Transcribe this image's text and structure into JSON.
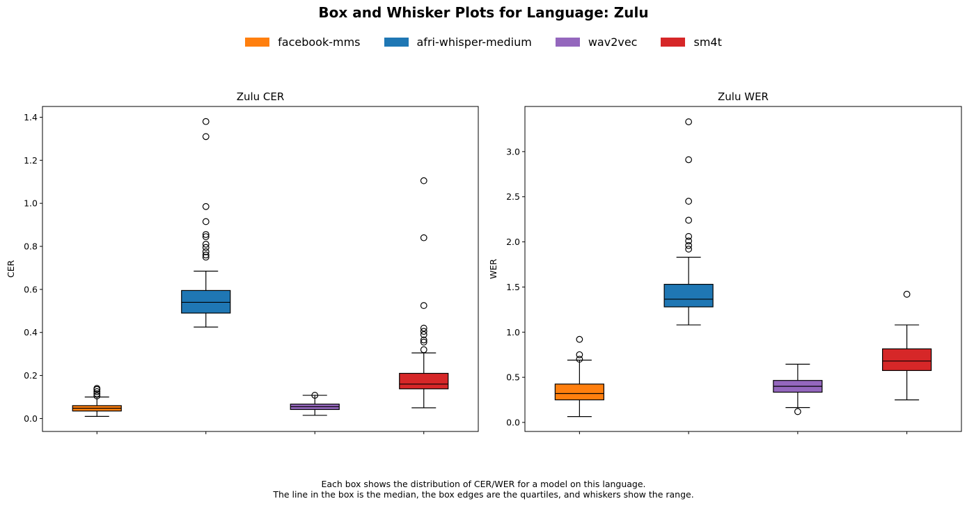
{
  "title": "Box and Whisker Plots for Language: Zulu",
  "legend": [
    {
      "label": "facebook-mms",
      "color": "#ff7f0e"
    },
    {
      "label": "afri-whisper-medium",
      "color": "#1f77b4"
    },
    {
      "label": "wav2vec",
      "color": "#9467bd"
    },
    {
      "label": "sm4t",
      "color": "#d62728"
    }
  ],
  "footnote": {
    "line1": "Each box shows the distribution of CER/WER for a model on this language.",
    "line2": "The line in the box is the median, the box edges are the quartiles, and whiskers show the range."
  },
  "chart_data": [
    {
      "type": "box",
      "title": "Zulu CER",
      "xlabel": "",
      "ylabel": "CER",
      "ylim": [
        -0.06,
        1.45
      ],
      "yticks": [
        "0.0",
        "0.2",
        "0.4",
        "0.6",
        "0.8",
        "1.0",
        "1.2",
        "1.4"
      ],
      "ytick_values": [
        0.0,
        0.2,
        0.4,
        0.6,
        0.8,
        1.0,
        1.2,
        1.4
      ],
      "boxes": [
        {
          "model": "facebook-mms",
          "color": "#ff7f0e",
          "whisker_low": 0.01,
          "q1": 0.035,
          "median": 0.048,
          "q3": 0.06,
          "whisker_high": 0.1,
          "outliers": [
            0.105,
            0.115,
            0.125,
            0.135,
            0.14
          ]
        },
        {
          "model": "afri-whisper-medium",
          "color": "#1f77b4",
          "whisker_low": 0.425,
          "q1": 0.49,
          "median": 0.54,
          "q3": 0.595,
          "whisker_high": 0.685,
          "outliers": [
            0.75,
            0.76,
            0.775,
            0.795,
            0.81,
            0.845,
            0.855,
            0.915,
            0.985,
            1.31,
            1.38
          ]
        },
        {
          "model": "wav2vec",
          "color": "#9467bd",
          "whisker_low": 0.015,
          "q1": 0.042,
          "median": 0.055,
          "q3": 0.067,
          "whisker_high": 0.108,
          "outliers": [
            0.108
          ]
        },
        {
          "model": "sm4t",
          "color": "#d62728",
          "whisker_low": 0.05,
          "q1": 0.138,
          "median": 0.16,
          "q3": 0.21,
          "whisker_high": 0.305,
          "outliers": [
            0.32,
            0.355,
            0.365,
            0.39,
            0.405,
            0.42,
            0.525,
            0.84,
            1.105
          ]
        }
      ]
    },
    {
      "type": "box",
      "title": "Zulu WER",
      "xlabel": "",
      "ylabel": "WER",
      "ylim": [
        -0.1,
        3.5
      ],
      "yticks": [
        "0.0",
        "0.5",
        "1.0",
        "1.5",
        "2.0",
        "2.5",
        "3.0"
      ],
      "ytick_values": [
        0.0,
        0.5,
        1.0,
        1.5,
        2.0,
        2.5,
        3.0
      ],
      "boxes": [
        {
          "model": "facebook-mms",
          "color": "#ff7f0e",
          "whisker_low": 0.065,
          "q1": 0.25,
          "median": 0.32,
          "q3": 0.425,
          "whisker_high": 0.69,
          "outliers": [
            0.7,
            0.75,
            0.92
          ]
        },
        {
          "model": "afri-whisper-medium",
          "color": "#1f77b4",
          "whisker_low": 1.08,
          "q1": 1.28,
          "median": 1.365,
          "q3": 1.53,
          "whisker_high": 1.83,
          "outliers": [
            1.92,
            1.96,
            2.01,
            2.06,
            2.24,
            2.45,
            2.91,
            3.33
          ]
        },
        {
          "model": "wav2vec",
          "color": "#9467bd",
          "whisker_low": 0.165,
          "q1": 0.335,
          "median": 0.4,
          "q3": 0.465,
          "whisker_high": 0.645,
          "outliers": [
            0.12
          ]
        },
        {
          "model": "sm4t",
          "color": "#d62728",
          "whisker_low": 0.25,
          "q1": 0.575,
          "median": 0.68,
          "q3": 0.815,
          "whisker_high": 1.08,
          "outliers": [
            1.42
          ]
        }
      ]
    }
  ]
}
